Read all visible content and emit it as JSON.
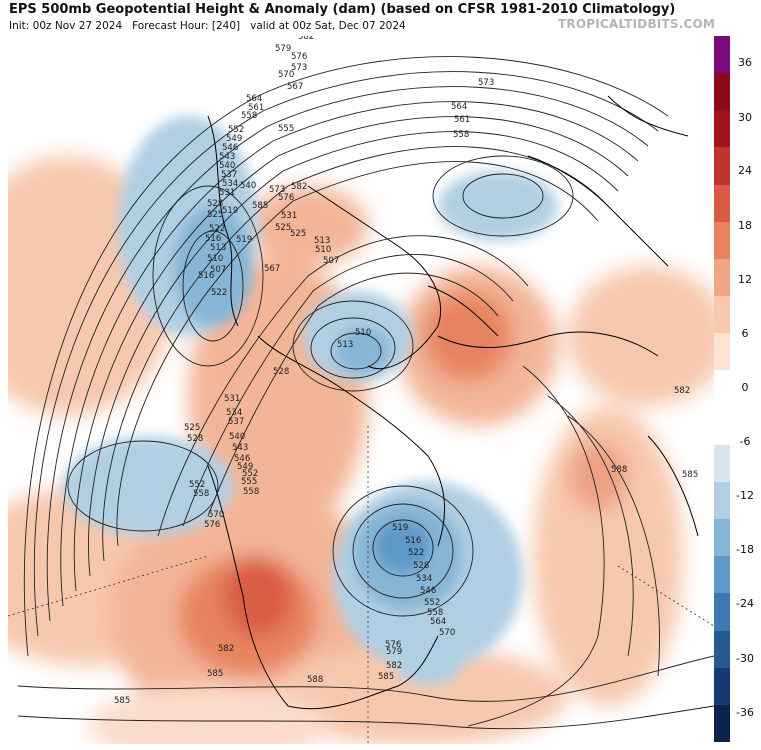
{
  "header": {
    "title": "EPS 500mb Geopotential Height & Anomaly (dam) (based on CFSR 1981-2010 Climatology)",
    "init": "Init: 00z Nov 27 2024",
    "forecast_hour": "Forecast Hour: [240]",
    "valid": "valid at 00z Sat, Dec 07 2024",
    "brand": "TROPICALTIDBITS.COM"
  },
  "colorbar": {
    "labels": [
      "36",
      "30",
      "24",
      "18",
      "12",
      "6",
      "0",
      "-6",
      "-12",
      "-18",
      "-24",
      "-30",
      "-36"
    ],
    "colors": [
      "#7a0b7a",
      "#8b0b1c",
      "#a3121f",
      "#c0352c",
      "#d95b45",
      "#e7835f",
      "#f0a583",
      "#f7c8ad",
      "#fce3d4",
      "#ffffff",
      "#ffffff",
      "#d6e6f1",
      "#b1cfe3",
      "#86b5d6",
      "#5d98c7",
      "#3e79b1",
      "#275a92",
      "#163b72",
      "#0b2251"
    ]
  },
  "contour_labels": [
    {
      "text": "588"
    },
    {
      "text": "585"
    },
    {
      "text": "582"
    },
    {
      "text": "579"
    },
    {
      "text": "576"
    },
    {
      "text": "573"
    },
    {
      "text": "570"
    },
    {
      "text": "567"
    },
    {
      "text": "564"
    },
    {
      "text": "561"
    },
    {
      "text": "558"
    },
    {
      "text": "555"
    },
    {
      "text": "552"
    },
    {
      "text": "549"
    },
    {
      "text": "546"
    },
    {
      "text": "543"
    },
    {
      "text": "540"
    },
    {
      "text": "537"
    },
    {
      "text": "534"
    },
    {
      "text": "531"
    },
    {
      "text": "528"
    },
    {
      "text": "525"
    },
    {
      "text": "522"
    },
    {
      "text": "519"
    },
    {
      "text": "516"
    },
    {
      "text": "513"
    },
    {
      "text": "510"
    },
    {
      "text": "507"
    },
    {
      "text": "573"
    },
    {
      "text": "564"
    },
    {
      "text": "561"
    },
    {
      "text": "558"
    },
    {
      "text": "588"
    },
    {
      "text": "582"
    },
    {
      "text": "588"
    },
    {
      "text": "585"
    },
    {
      "text": "525"
    },
    {
      "text": "528"
    },
    {
      "text": "552"
    },
    {
      "text": "558"
    },
    {
      "text": "570"
    },
    {
      "text": "576"
    },
    {
      "text": "582"
    },
    {
      "text": "585"
    },
    {
      "text": "588"
    },
    {
      "text": "585"
    },
    {
      "text": "516"
    },
    {
      "text": "522"
    },
    {
      "text": "519"
    },
    {
      "text": "510"
    },
    {
      "text": "513"
    },
    {
      "text": "507"
    },
    {
      "text": "513"
    },
    {
      "text": "510"
    },
    {
      "text": "525"
    },
    {
      "text": "528"
    },
    {
      "text": "531"
    },
    {
      "text": "534"
    },
    {
      "text": "537"
    },
    {
      "text": "540"
    },
    {
      "text": "543"
    },
    {
      "text": "546"
    },
    {
      "text": "549"
    },
    {
      "text": "552"
    },
    {
      "text": "555"
    },
    {
      "text": "558"
    },
    {
      "text": "567"
    },
    {
      "text": "573"
    },
    {
      "text": "576"
    },
    {
      "text": "582"
    },
    {
      "text": "585"
    },
    {
      "text": "540"
    },
    {
      "text": "531"
    },
    {
      "text": "525"
    },
    {
      "text": "519"
    },
    {
      "text": "516"
    },
    {
      "text": "522"
    },
    {
      "text": "528"
    },
    {
      "text": "534"
    },
    {
      "text": "546"
    },
    {
      "text": "552"
    },
    {
      "text": "558"
    },
    {
      "text": "564"
    },
    {
      "text": "570"
    },
    {
      "text": "576"
    },
    {
      "text": "579"
    },
    {
      "text": "582"
    },
    {
      "text": "585"
    },
    {
      "text": "588"
    }
  ]
}
